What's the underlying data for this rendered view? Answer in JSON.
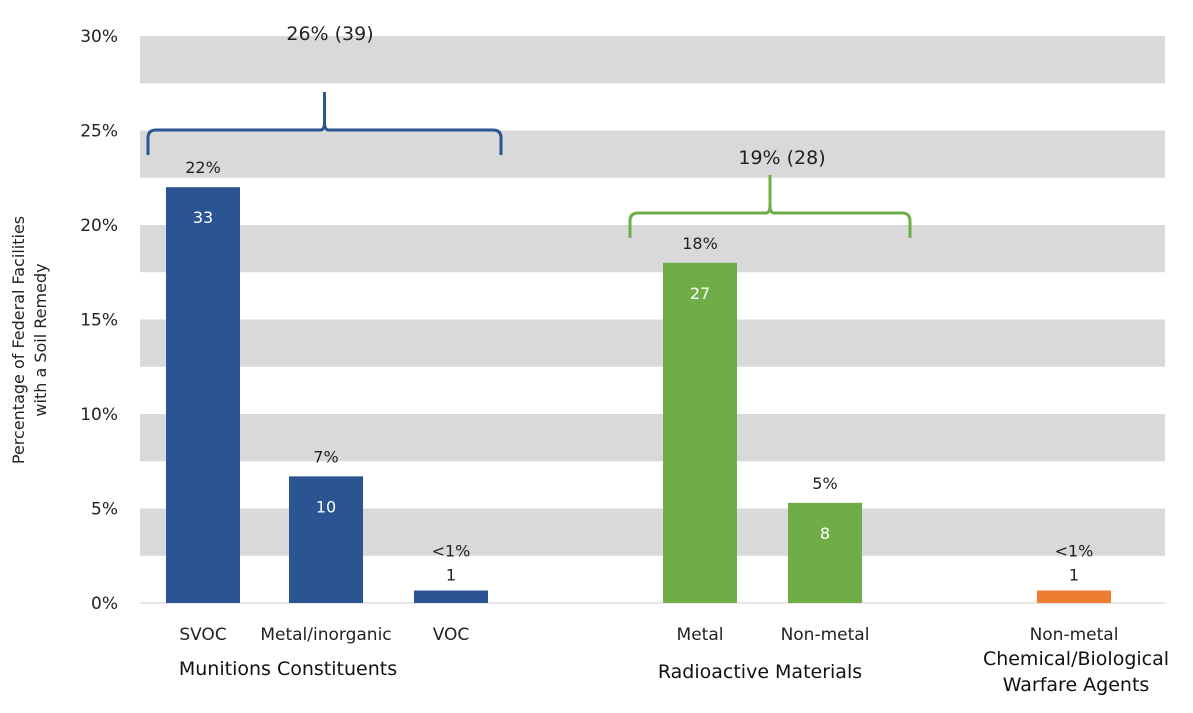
{
  "chart_data": {
    "type": "bar",
    "title": "",
    "ylabel": [
      "Percentage of Federal Facilities",
      "with a Soil Remedy"
    ],
    "ylim": [
      0,
      30
    ],
    "yticks": [
      "0%",
      "5%",
      "10%",
      "15%",
      "20%",
      "25%",
      "30%"
    ],
    "grid": "alternating horizontal bands",
    "groups": [
      {
        "label": [
          "Munitions Constituents"
        ],
        "color": "#2a5592",
        "bracket_label": "26% (39)",
        "bars": [
          {
            "category": "SVOC",
            "value": 22,
            "pct_label": "22%",
            "count_label": "33"
          },
          {
            "category": "Metal/inorganic",
            "value": 6.7,
            "pct_label": "7%",
            "count_label": "10"
          },
          {
            "category": "VOC",
            "value": 0.66,
            "pct_label": "<1%",
            "count_label": "1"
          }
        ]
      },
      {
        "label": [
          "Radioactive Materials"
        ],
        "color": "#70ad47",
        "bracket_label": "19% (28)",
        "bars": [
          {
            "category": "Metal",
            "value": 18,
            "pct_label": "18%",
            "count_label": "27"
          },
          {
            "category": "Non-metal",
            "value": 5.3,
            "pct_label": "5%",
            "count_label": "8"
          }
        ]
      },
      {
        "label": [
          "Chemical/Biological",
          "Warfare Agents"
        ],
        "color": "#ed7d31",
        "bracket_label": "",
        "bars": [
          {
            "category": "Non-metal",
            "value": 0.66,
            "pct_label": "<1%",
            "count_label": "1"
          }
        ]
      }
    ]
  }
}
